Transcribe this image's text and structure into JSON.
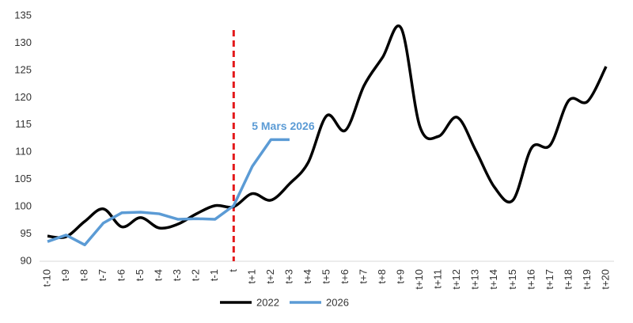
{
  "chart_data": {
    "type": "line",
    "categories": [
      "t-10",
      "t-9",
      "t-8",
      "t-7",
      "t-6",
      "t-5",
      "t-4",
      "t-3",
      "t-2",
      "t-1",
      "t",
      "t+1",
      "t+2",
      "t+3",
      "t+4",
      "t+5",
      "t+6",
      "t+7",
      "t+8",
      "t+9",
      "t+10",
      "t+11",
      "t+12",
      "t+13",
      "t+14",
      "t+15",
      "t+16",
      "t+17",
      "t+18",
      "t+19",
      "t+20"
    ],
    "series": [
      {
        "name": "2022",
        "color": "#000000",
        "smooth": true,
        "values": [
          94.6,
          94.5,
          97.3,
          99.6,
          96.3,
          98.0,
          96.1,
          96.8,
          98.7,
          100.2,
          100.0,
          102.4,
          101.2,
          104.2,
          108.1,
          116.7,
          114.0,
          122.2,
          127.4,
          132.7,
          114.7,
          112.9,
          116.4,
          110.3,
          103.6,
          101.2,
          110.8,
          111.3,
          119.5,
          119.3,
          125.7
        ]
      },
      {
        "name": "2026",
        "color": "#5b9bd5",
        "smooth": false,
        "values": [
          93.6,
          94.8,
          93.0,
          97.0,
          98.9,
          99.0,
          98.7,
          97.7,
          97.8,
          97.7,
          100.2,
          107.4,
          112.3,
          112.3,
          null,
          null,
          null,
          null,
          null,
          null,
          null,
          null,
          null,
          null,
          null,
          null,
          null,
          null,
          null,
          null,
          null
        ]
      }
    ],
    "annotation": "5 Mars 2026",
    "vline_at": "t",
    "vline_color": "#e31a1c",
    "ylim": [
      90,
      135
    ],
    "yticks": [
      90,
      95,
      100,
      105,
      110,
      115,
      120,
      125,
      130,
      135
    ],
    "grid": false,
    "legend": "bottom"
  }
}
